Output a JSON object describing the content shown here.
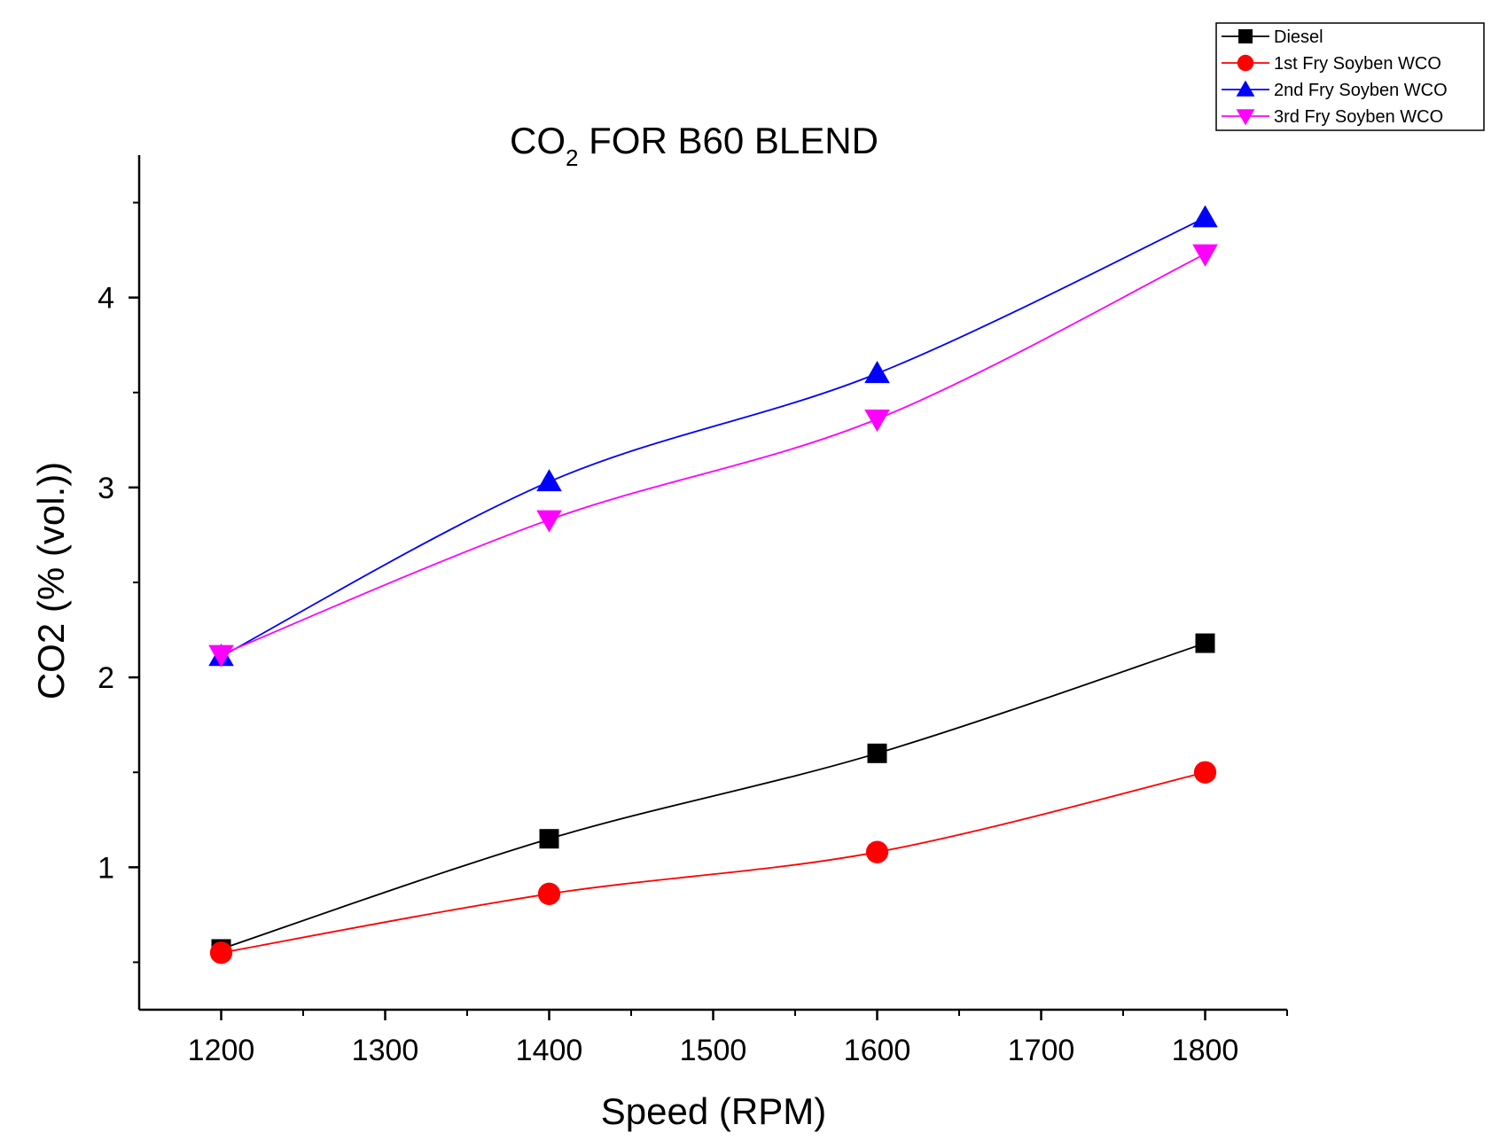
{
  "chart_data": {
    "type": "line",
    "title_main": "CO",
    "title_sub": "2",
    "title_rest": " FOR B60 BLEND",
    "xlabel": "Speed (RPM)",
    "ylabel": "CO2 (% (vol.))",
    "xlim": [
      1150,
      1850
    ],
    "ylim": [
      0.25,
      4.75
    ],
    "x_ticks": [
      1200,
      1300,
      1400,
      1500,
      1600,
      1700,
      1800
    ],
    "y_ticks": [
      1,
      2,
      3,
      4
    ],
    "x": [
      1200,
      1400,
      1600,
      1800
    ],
    "legend_position": "top-right",
    "grid": false,
    "series": [
      {
        "name": "Diesel",
        "values": [
          0.57,
          1.15,
          1.6,
          2.18
        ],
        "color": "#000000",
        "marker": "square"
      },
      {
        "name": "1st Fry Soyben WCO",
        "values": [
          0.55,
          0.86,
          1.08,
          1.5
        ],
        "color": "#ff0000",
        "marker": "circle"
      },
      {
        "name": "2nd Fry Soyben WCO",
        "values": [
          2.11,
          3.03,
          3.6,
          4.42
        ],
        "color": "#0000ff",
        "marker": "triangle-up"
      },
      {
        "name": "3rd Fry Soyben WCO",
        "values": [
          2.12,
          2.83,
          3.36,
          4.23
        ],
        "color": "#ff00ff",
        "marker": "triangle-down"
      }
    ]
  }
}
